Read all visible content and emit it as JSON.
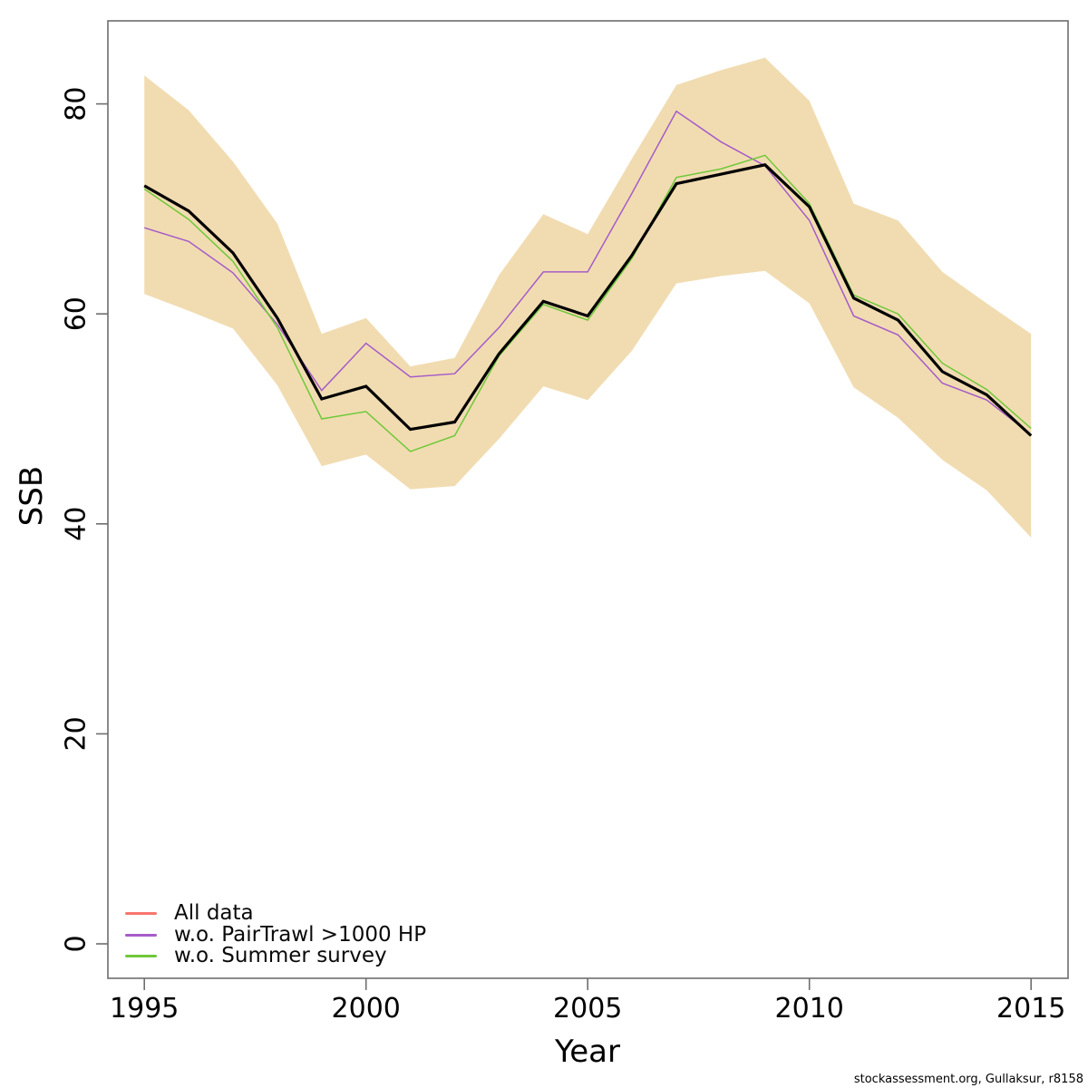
{
  "chart_data": {
    "type": "line",
    "title": "",
    "xlabel": "Year",
    "ylabel": "SSB",
    "x": [
      1995,
      1996,
      1997,
      1998,
      1999,
      2000,
      2001,
      2002,
      2003,
      2004,
      2005,
      2006,
      2007,
      2008,
      2009,
      2010,
      2011,
      2012,
      2013,
      2014,
      2015
    ],
    "series": [
      {
        "name": "All data",
        "color": "#f8766d",
        "values": [
          72.2,
          69.8,
          65.8,
          59.6,
          51.9,
          53.1,
          49.0,
          49.7,
          56.2,
          61.2,
          59.8,
          65.6,
          72.4,
          73.3,
          74.2,
          70.2,
          61.5,
          59.4,
          54.5,
          52.3,
          48.4
        ]
      },
      {
        "name": "w.o. PairTrawl >1000 HP",
        "color": "#a55cc8",
        "values": [
          68.2,
          66.9,
          63.9,
          59.0,
          52.7,
          57.2,
          54.0,
          54.3,
          58.7,
          64.0,
          64.0,
          71.5,
          79.3,
          76.4,
          74.1,
          68.9,
          59.8,
          58.0,
          53.4,
          51.8,
          48.5
        ]
      },
      {
        "name": "w.o. Summer survey",
        "color": "#6fc83a",
        "values": [
          71.9,
          69.0,
          65.0,
          58.7,
          50.0,
          50.7,
          46.9,
          48.4,
          56.0,
          60.9,
          59.4,
          65.3,
          73.0,
          73.8,
          75.1,
          70.5,
          61.8,
          60.0,
          55.3,
          52.8,
          49.1
        ]
      }
    ],
    "base_line": {
      "name": "All data",
      "color": "#000000",
      "values": [
        72.2,
        69.8,
        65.8,
        59.6,
        51.9,
        53.1,
        49.0,
        49.7,
        56.2,
        61.2,
        59.8,
        65.6,
        72.4,
        73.3,
        74.2,
        70.2,
        61.5,
        59.4,
        54.5,
        52.3,
        48.4
      ]
    },
    "confidence_band": {
      "color": "#f1dcb1",
      "lower": [
        61.9,
        60.3,
        58.6,
        53.2,
        45.5,
        46.6,
        43.3,
        43.6,
        48.1,
        53.1,
        51.8,
        56.5,
        62.9,
        63.6,
        64.1,
        61.0,
        53.0,
        50.1,
        46.1,
        43.2,
        38.7
      ],
      "upper": [
        82.7,
        79.4,
        74.5,
        68.6,
        58.1,
        59.6,
        55.0,
        55.8,
        63.7,
        69.5,
        67.6,
        74.8,
        81.8,
        83.2,
        84.4,
        80.3,
        70.5,
        68.9,
        64.0,
        61.0,
        58.1
      ]
    },
    "x_ticks": [
      "1995",
      "2000",
      "2005",
      "2010",
      "2015"
    ],
    "x_tick_values": [
      1995,
      2000,
      2005,
      2010,
      2015
    ],
    "y_ticks": [
      "0",
      "20",
      "40",
      "60",
      "80"
    ],
    "y_tick_values": [
      0,
      20,
      40,
      60,
      80
    ],
    "xlim": [
      1994.1,
      2015.9
    ],
    "ylim": [
      -3.4,
      87.8
    ],
    "grid": false,
    "legend_position": "bottom-left"
  },
  "legend": {
    "items": [
      {
        "label": "All data",
        "color": "#f8766d"
      },
      {
        "label": "w.o. PairTrawl >1000 HP",
        "color": "#a55cc8"
      },
      {
        "label": "w.o. Summer survey",
        "color": "#6fc83a"
      }
    ]
  },
  "footer": {
    "credit": "stockassessment.org, Gullaksur, r8158"
  }
}
